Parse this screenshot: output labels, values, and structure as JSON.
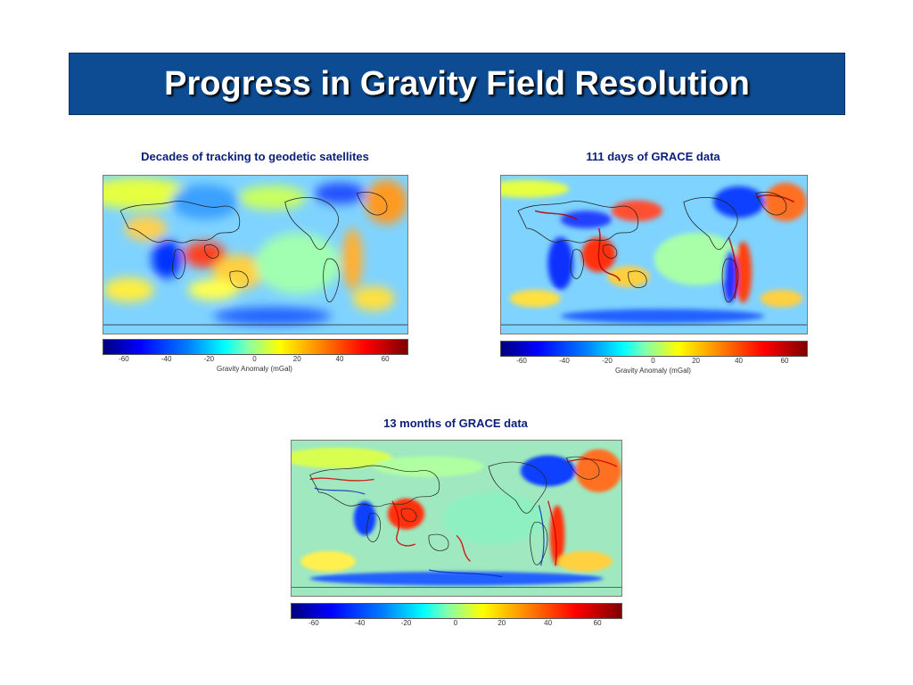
{
  "title": "Progress in Gravity Field Resolution",
  "panels": [
    {
      "caption": "Decades of tracking to geodetic satellites",
      "colorbar": {
        "ticks": [
          "-60",
          "-40",
          "-20",
          "0",
          "20",
          "40",
          "60"
        ],
        "label": "Gravity Anomaly (mGal)"
      }
    },
    {
      "caption": "111 days of GRACE data",
      "colorbar": {
        "ticks": [
          "-60",
          "-40",
          "-20",
          "0",
          "20",
          "40",
          "60"
        ],
        "label": "Gravity Anomaly (mGal)"
      }
    },
    {
      "caption": "13 months  of GRACE data",
      "colorbar": {
        "ticks": [
          "-60",
          "-40",
          "-20",
          "0",
          "20",
          "40",
          "60"
        ],
        "label": ""
      }
    }
  ],
  "colors": {
    "title_bar": "#0d4c92",
    "caption_text": "#0a1f7a",
    "map_base": "#7fd3ff",
    "positive_anomaly": "#ff2a00",
    "negative_anomaly": "#0030ff"
  }
}
